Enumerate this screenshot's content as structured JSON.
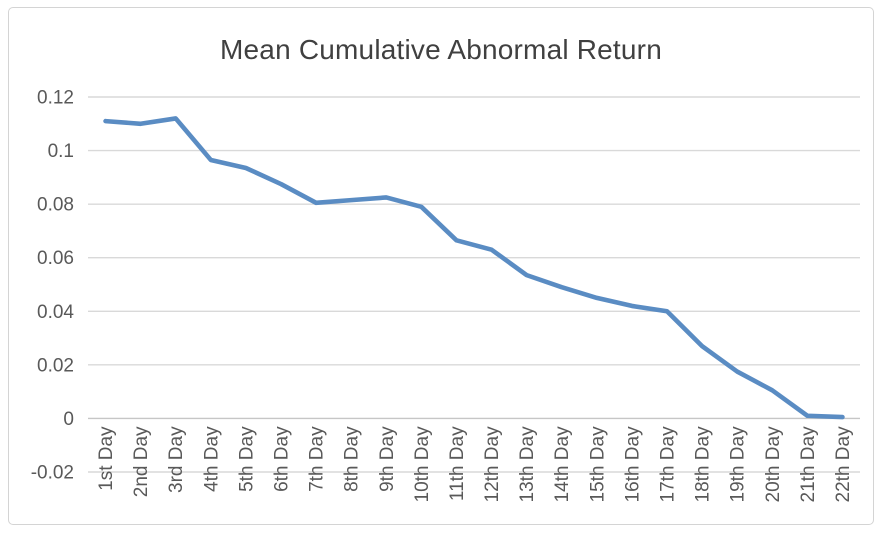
{
  "chart_data": {
    "type": "line",
    "title": "Mean Cumulative Abnormal Return",
    "categories": [
      "1st Day",
      "2nd Day",
      "3rd Day",
      "4th Day",
      "5th Day",
      "6th Day",
      "7th Day",
      "8th Day",
      "9th Day",
      "10th Day",
      "11th Day",
      "12th Day",
      "13th Day",
      "14th Day",
      "15th Day",
      "16th Day",
      "17th Day",
      "18th Day",
      "19th Day",
      "20th Day",
      "21th Day",
      "22th Day"
    ],
    "values": [
      0.111,
      0.11,
      0.112,
      0.0965,
      0.0935,
      0.0875,
      0.0805,
      0.0815,
      0.0825,
      0.079,
      0.0665,
      0.063,
      0.0535,
      0.049,
      0.045,
      0.042,
      0.04,
      0.027,
      0.0175,
      0.0105,
      0.001,
      0.0005
    ],
    "xlabel": "",
    "ylabel": "",
    "ylim": [
      -0.02,
      0.12
    ],
    "ytick_values": [
      0.12,
      0.1,
      0.08,
      0.06,
      0.04,
      0.02,
      0,
      -0.02
    ],
    "ytick_labels": [
      "0.12",
      "0.1",
      "0.08",
      "0.06",
      "0.04",
      "0.02",
      "0",
      "-0.02"
    ],
    "grid": "horizontal",
    "legend": "none",
    "colors": {
      "line": "#5a8cc3",
      "gridline": "#d9d9d9",
      "axis_line": "#c6c6c6",
      "tick_text": "#595959",
      "title_text": "#404040",
      "background": "#ffffff",
      "frame_border": "#d4d4d4"
    }
  }
}
